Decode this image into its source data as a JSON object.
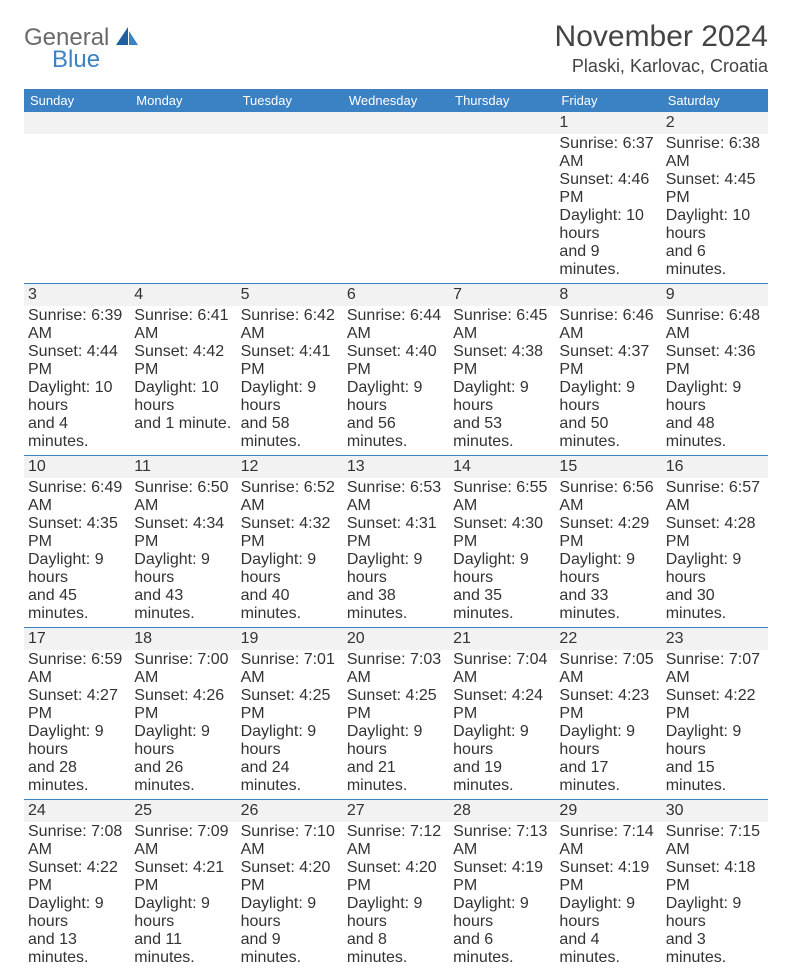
{
  "logo": {
    "word1": "General",
    "word2": "Blue"
  },
  "title": "November 2024",
  "location": "Plaski, Karlovac, Croatia",
  "colors": {
    "header_bg": "#3b82c4",
    "header_text": "#ffffff",
    "shade_bg": "#f2f2f2",
    "text": "#555555",
    "rule": "#3b82c4"
  },
  "dayNames": [
    "Sunday",
    "Monday",
    "Tuesday",
    "Wednesday",
    "Thursday",
    "Friday",
    "Saturday"
  ],
  "weeks": [
    [
      null,
      null,
      null,
      null,
      null,
      {
        "n": "1",
        "sr": "Sunrise: 6:37 AM",
        "ss": "Sunset: 4:46 PM",
        "d1": "Daylight: 10 hours",
        "d2": "and 9 minutes."
      },
      {
        "n": "2",
        "sr": "Sunrise: 6:38 AM",
        "ss": "Sunset: 4:45 PM",
        "d1": "Daylight: 10 hours",
        "d2": "and 6 minutes."
      }
    ],
    [
      {
        "n": "3",
        "sr": "Sunrise: 6:39 AM",
        "ss": "Sunset: 4:44 PM",
        "d1": "Daylight: 10 hours",
        "d2": "and 4 minutes."
      },
      {
        "n": "4",
        "sr": "Sunrise: 6:41 AM",
        "ss": "Sunset: 4:42 PM",
        "d1": "Daylight: 10 hours",
        "d2": "and 1 minute."
      },
      {
        "n": "5",
        "sr": "Sunrise: 6:42 AM",
        "ss": "Sunset: 4:41 PM",
        "d1": "Daylight: 9 hours",
        "d2": "and 58 minutes."
      },
      {
        "n": "6",
        "sr": "Sunrise: 6:44 AM",
        "ss": "Sunset: 4:40 PM",
        "d1": "Daylight: 9 hours",
        "d2": "and 56 minutes."
      },
      {
        "n": "7",
        "sr": "Sunrise: 6:45 AM",
        "ss": "Sunset: 4:38 PM",
        "d1": "Daylight: 9 hours",
        "d2": "and 53 minutes."
      },
      {
        "n": "8",
        "sr": "Sunrise: 6:46 AM",
        "ss": "Sunset: 4:37 PM",
        "d1": "Daylight: 9 hours",
        "d2": "and 50 minutes."
      },
      {
        "n": "9",
        "sr": "Sunrise: 6:48 AM",
        "ss": "Sunset: 4:36 PM",
        "d1": "Daylight: 9 hours",
        "d2": "and 48 minutes."
      }
    ],
    [
      {
        "n": "10",
        "sr": "Sunrise: 6:49 AM",
        "ss": "Sunset: 4:35 PM",
        "d1": "Daylight: 9 hours",
        "d2": "and 45 minutes."
      },
      {
        "n": "11",
        "sr": "Sunrise: 6:50 AM",
        "ss": "Sunset: 4:34 PM",
        "d1": "Daylight: 9 hours",
        "d2": "and 43 minutes."
      },
      {
        "n": "12",
        "sr": "Sunrise: 6:52 AM",
        "ss": "Sunset: 4:32 PM",
        "d1": "Daylight: 9 hours",
        "d2": "and 40 minutes."
      },
      {
        "n": "13",
        "sr": "Sunrise: 6:53 AM",
        "ss": "Sunset: 4:31 PM",
        "d1": "Daylight: 9 hours",
        "d2": "and 38 minutes."
      },
      {
        "n": "14",
        "sr": "Sunrise: 6:55 AM",
        "ss": "Sunset: 4:30 PM",
        "d1": "Daylight: 9 hours",
        "d2": "and 35 minutes."
      },
      {
        "n": "15",
        "sr": "Sunrise: 6:56 AM",
        "ss": "Sunset: 4:29 PM",
        "d1": "Daylight: 9 hours",
        "d2": "and 33 minutes."
      },
      {
        "n": "16",
        "sr": "Sunrise: 6:57 AM",
        "ss": "Sunset: 4:28 PM",
        "d1": "Daylight: 9 hours",
        "d2": "and 30 minutes."
      }
    ],
    [
      {
        "n": "17",
        "sr": "Sunrise: 6:59 AM",
        "ss": "Sunset: 4:27 PM",
        "d1": "Daylight: 9 hours",
        "d2": "and 28 minutes."
      },
      {
        "n": "18",
        "sr": "Sunrise: 7:00 AM",
        "ss": "Sunset: 4:26 PM",
        "d1": "Daylight: 9 hours",
        "d2": "and 26 minutes."
      },
      {
        "n": "19",
        "sr": "Sunrise: 7:01 AM",
        "ss": "Sunset: 4:25 PM",
        "d1": "Daylight: 9 hours",
        "d2": "and 24 minutes."
      },
      {
        "n": "20",
        "sr": "Sunrise: 7:03 AM",
        "ss": "Sunset: 4:25 PM",
        "d1": "Daylight: 9 hours",
        "d2": "and 21 minutes."
      },
      {
        "n": "21",
        "sr": "Sunrise: 7:04 AM",
        "ss": "Sunset: 4:24 PM",
        "d1": "Daylight: 9 hours",
        "d2": "and 19 minutes."
      },
      {
        "n": "22",
        "sr": "Sunrise: 7:05 AM",
        "ss": "Sunset: 4:23 PM",
        "d1": "Daylight: 9 hours",
        "d2": "and 17 minutes."
      },
      {
        "n": "23",
        "sr": "Sunrise: 7:07 AM",
        "ss": "Sunset: 4:22 PM",
        "d1": "Daylight: 9 hours",
        "d2": "and 15 minutes."
      }
    ],
    [
      {
        "n": "24",
        "sr": "Sunrise: 7:08 AM",
        "ss": "Sunset: 4:22 PM",
        "d1": "Daylight: 9 hours",
        "d2": "and 13 minutes."
      },
      {
        "n": "25",
        "sr": "Sunrise: 7:09 AM",
        "ss": "Sunset: 4:21 PM",
        "d1": "Daylight: 9 hours",
        "d2": "and 11 minutes."
      },
      {
        "n": "26",
        "sr": "Sunrise: 7:10 AM",
        "ss": "Sunset: 4:20 PM",
        "d1": "Daylight: 9 hours",
        "d2": "and 9 minutes."
      },
      {
        "n": "27",
        "sr": "Sunrise: 7:12 AM",
        "ss": "Sunset: 4:20 PM",
        "d1": "Daylight: 9 hours",
        "d2": "and 8 minutes."
      },
      {
        "n": "28",
        "sr": "Sunrise: 7:13 AM",
        "ss": "Sunset: 4:19 PM",
        "d1": "Daylight: 9 hours",
        "d2": "and 6 minutes."
      },
      {
        "n": "29",
        "sr": "Sunrise: 7:14 AM",
        "ss": "Sunset: 4:19 PM",
        "d1": "Daylight: 9 hours",
        "d2": "and 4 minutes."
      },
      {
        "n": "30",
        "sr": "Sunrise: 7:15 AM",
        "ss": "Sunset: 4:18 PM",
        "d1": "Daylight: 9 hours",
        "d2": "and 3 minutes."
      }
    ]
  ]
}
